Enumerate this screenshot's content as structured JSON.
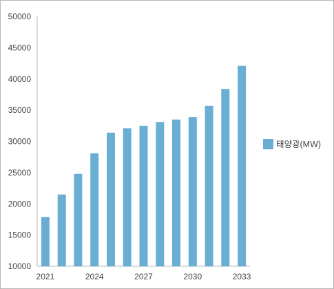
{
  "chart_data": {
    "type": "bar",
    "title": "",
    "xlabel": "",
    "ylabel": "",
    "ylim": [
      10000,
      50000
    ],
    "y_ticks": [
      10000,
      15000,
      20000,
      25000,
      30000,
      35000,
      40000,
      45000,
      50000
    ],
    "categories": [
      "2021",
      "2022",
      "2023",
      "2024",
      "2025",
      "2026",
      "2027",
      "2028",
      "2029",
      "2030",
      "2031",
      "2032",
      "2033"
    ],
    "x_tick_labels": [
      "2021",
      "2024",
      "2027",
      "2030",
      "2033"
    ],
    "series": [
      {
        "name": "태양광(MW)",
        "color": "#6aaed4",
        "values": [
          17900,
          21500,
          24800,
          28100,
          31400,
          32100,
          32500,
          33100,
          33500,
          33900,
          35700,
          38400,
          42100
        ]
      }
    ],
    "grid": false,
    "legend_position": "right"
  }
}
